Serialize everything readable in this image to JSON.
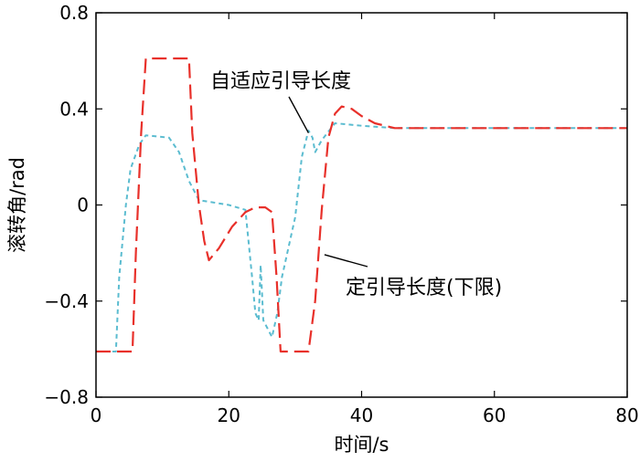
{
  "chart_data": {
    "type": "line",
    "xlabel": "时间/s",
    "ylabel": "滚转角/rad",
    "xlim": [
      0,
      80
    ],
    "ylim": [
      -0.8,
      0.8
    ],
    "x_ticks": [
      0,
      20,
      40,
      60,
      80
    ],
    "x_tick_labels": [
      "0",
      "20",
      "40",
      "60",
      "80"
    ],
    "y_ticks": [
      0.8,
      0.4,
      0,
      -0.4,
      -0.8
    ],
    "y_tick_labels": [
      "0.8",
      "0.4",
      "0",
      "−0.4",
      "−0.8"
    ],
    "grid": false,
    "series": [
      {
        "name": "定引导长度(下限)",
        "color": "#e8302a",
        "dash": "long-dash",
        "points": [
          [
            0,
            -0.61
          ],
          [
            5.5,
            -0.61
          ],
          [
            6,
            -0.2
          ],
          [
            6.8,
            0.3
          ],
          [
            7.5,
            0.61
          ],
          [
            14,
            0.61
          ],
          [
            14.5,
            0.3
          ],
          [
            15.5,
            0.0
          ],
          [
            16.3,
            -0.15
          ],
          [
            17,
            -0.23
          ],
          [
            18.5,
            -0.18
          ],
          [
            20.5,
            -0.09
          ],
          [
            22.5,
            -0.03
          ],
          [
            24,
            -0.01
          ],
          [
            25.5,
            -0.01
          ],
          [
            26.5,
            -0.03
          ],
          [
            27.2,
            -0.3
          ],
          [
            27.8,
            -0.61
          ],
          [
            32,
            -0.61
          ],
          [
            33,
            -0.4
          ],
          [
            34,
            -0.02
          ],
          [
            35,
            0.28
          ],
          [
            36,
            0.38
          ],
          [
            37,
            0.41
          ],
          [
            38.5,
            0.4
          ],
          [
            40,
            0.37
          ],
          [
            42,
            0.34
          ],
          [
            45,
            0.32
          ],
          [
            50,
            0.32
          ],
          [
            80,
            0.32
          ]
        ]
      },
      {
        "name": "自适应引导长度",
        "color": "#5bbcd0",
        "dash": "short-dash",
        "points": [
          [
            0,
            -0.61
          ],
          [
            3,
            -0.61
          ],
          [
            3.5,
            -0.3
          ],
          [
            4.5,
            0.0
          ],
          [
            5.2,
            0.15
          ],
          [
            6.5,
            0.25
          ],
          [
            7.5,
            0.29
          ],
          [
            11,
            0.28
          ],
          [
            12.5,
            0.22
          ],
          [
            14,
            0.1
          ],
          [
            15.5,
            0.02
          ],
          [
            20,
            0.0
          ],
          [
            22.5,
            -0.02
          ],
          [
            23.5,
            -0.3
          ],
          [
            24,
            -0.45
          ],
          [
            24.5,
            -0.48
          ],
          [
            24.8,
            -0.25
          ],
          [
            25.2,
            -0.48
          ],
          [
            26.5,
            -0.55
          ],
          [
            27.3,
            -0.45
          ],
          [
            28,
            -0.3
          ],
          [
            30,
            -0.05
          ],
          [
            31,
            0.2
          ],
          [
            32,
            0.31
          ],
          [
            32.6,
            0.28
          ],
          [
            33,
            0.22
          ],
          [
            34,
            0.27
          ],
          [
            36,
            0.34
          ],
          [
            40,
            0.33
          ],
          [
            45,
            0.32
          ],
          [
            80,
            0.32
          ]
        ]
      }
    ],
    "annotations": [
      {
        "text": "自适应引导长度",
        "points_to": [
          32,
          0.3
        ]
      },
      {
        "text": "定引导长度(下限)",
        "points_to": [
          34,
          -0.15
        ]
      }
    ]
  }
}
